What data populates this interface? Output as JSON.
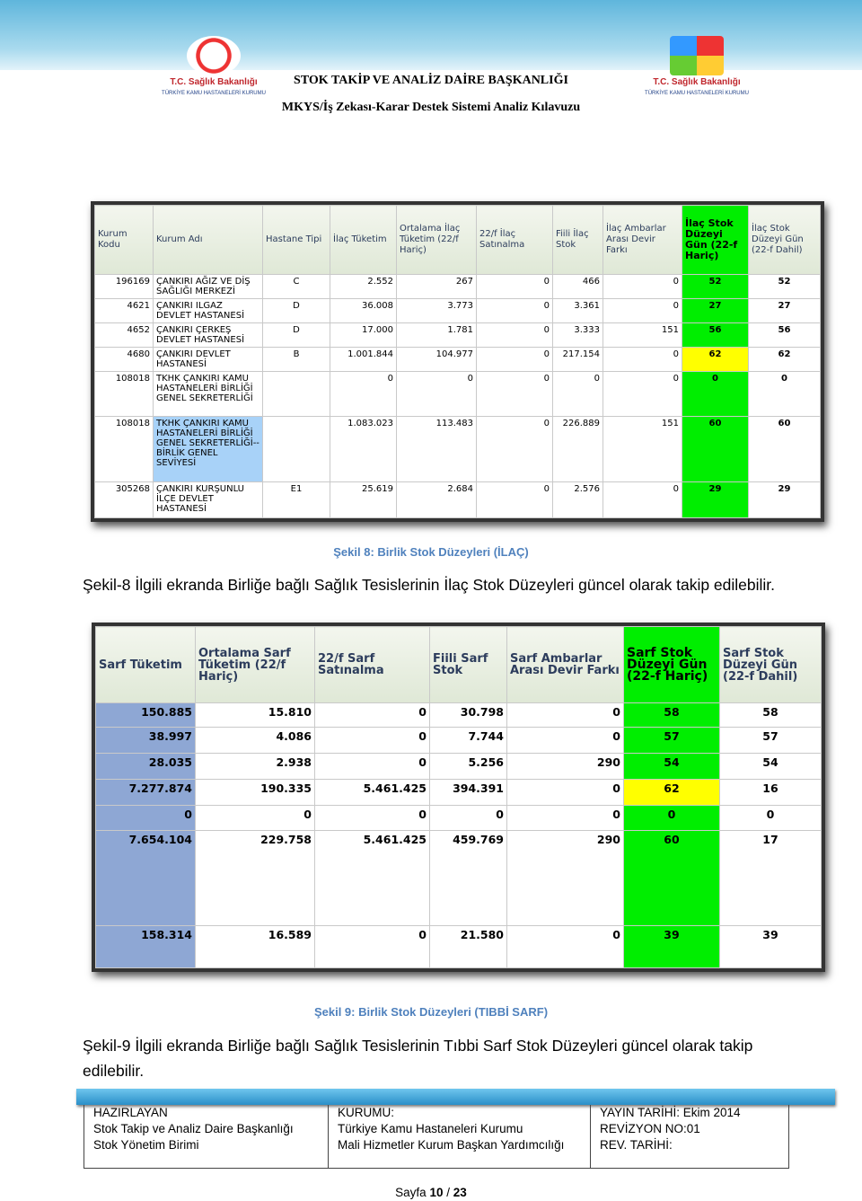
{
  "header": {
    "left_logo": {
      "org": "T.C. Sağlık Bakanlığı",
      "sub": "TÜRKİYE KAMU HASTANELERİ KURUMU"
    },
    "right_logo": {
      "org": "T.C. Sağlık Bakanlığı",
      "sub": "TÜRKİYE KAMU HASTANELERİ KURUMU"
    },
    "title": "STOK TAKİP VE ANALİZ DAİRE BAŞKANLIĞI",
    "subtitle": "MKYS/İş Zekası-Karar Destek Sistemi Analiz Kılavuzu"
  },
  "table1": {
    "headers": [
      "Kurum Kodu",
      "Kurum Adı",
      "Hastane Tipi",
      "İlaç Tüketim",
      "Ortalama İlaç Tüketim (22/f Hariç)",
      "22/f İlaç Satınalma",
      "Fiili İlaç Stok",
      "İlaç Ambarlar Arası Devir Farkı",
      "İlaç Stok Düzeyi Gün (22-f Hariç)",
      "İlaç Stok Düzeyi Gün (22-f Dahil)"
    ],
    "rows": [
      [
        "196169",
        "ÇANKIRI AĞIZ VE DİŞ SAĞLIĞI MERKEZİ",
        "C",
        "2.552",
        "267",
        "0",
        "466",
        "0",
        "52",
        "52"
      ],
      [
        "4621",
        "ÇANKIRI ILGAZ DEVLET HASTANESİ",
        "D",
        "36.008",
        "3.773",
        "0",
        "3.361",
        "0",
        "27",
        "27"
      ],
      [
        "4652",
        "ÇANKIRI ÇERKEŞ DEVLET HASTANESİ",
        "D",
        "17.000",
        "1.781",
        "0",
        "3.333",
        "151",
        "56",
        "56"
      ],
      [
        "4680",
        "ÇANKIRI DEVLET HASTANESİ",
        "B",
        "1.001.844",
        "104.977",
        "0",
        "217.154",
        "0",
        "62",
        "62"
      ],
      [
        "108018",
        "TKHK ÇANKIRI KAMU HASTANELERİ BİRLİĞİ GENEL SEKRETERLİĞİ",
        null,
        "0",
        "0",
        "0",
        "0",
        "0",
        "0",
        "0"
      ],
      [
        "108018",
        "TKHK ÇANKIRI KAMU HASTANELERİ BİRLİĞİ GENEL SEKRETERLİĞİ--BİRLİK GENEL SEVİYESİ",
        null,
        "1.083.023",
        "113.483",
        "0",
        "226.889",
        "151",
        "60",
        "60"
      ],
      [
        "305268",
        "ÇANKIRI KURŞUNLU İLÇE DEVLET HASTANESİ",
        "E1",
        "25.619",
        "2.684",
        "0",
        "2.576",
        "0",
        "29",
        "29"
      ]
    ],
    "level_colors": [
      "#00ee00",
      "#00ee00",
      "#00ee00",
      "#ffff00",
      "#00ee00",
      "#00ee00",
      "#00ee00"
    ]
  },
  "caption1": "Şekil 8: Birlik Stok Düzeyleri (İLAÇ)",
  "paragraph1": "Şekil-8 İlgili ekranda Birliğe bağlı Sağlık Tesislerinin İlaç Stok Düzeyleri güncel olarak takip edilebilir.",
  "table2": {
    "headers": [
      "Sarf Tüketim",
      "Ortalama Sarf Tüketim (22/f Hariç)",
      "22/f Sarf Satınalma",
      "Fiili Sarf Stok",
      "Sarf Ambarlar Arası Devir Farkı",
      "Sarf Stok Düzeyi Gün (22-f Hariç)",
      "Sarf Stok Düzeyi Gün (22-f Dahil)"
    ],
    "rows": [
      [
        "150.885",
        "15.810",
        "0",
        "30.798",
        "0",
        "58",
        "58"
      ],
      [
        "38.997",
        "4.086",
        "0",
        "7.744",
        "0",
        "57",
        "57"
      ],
      [
        "28.035",
        "2.938",
        "0",
        "5.256",
        "290",
        "54",
        "54"
      ],
      [
        "7.277.874",
        "190.335",
        "5.461.425",
        "394.391",
        "0",
        "62",
        "16"
      ],
      [
        "0",
        "0",
        "0",
        "0",
        "0",
        "0",
        "0"
      ],
      [
        "7.654.104",
        "229.758",
        "5.461.425",
        "459.769",
        "290",
        "60",
        "17"
      ],
      [
        "158.314",
        "16.589",
        "0",
        "21.580",
        "0",
        "39",
        "39"
      ]
    ],
    "level_colors": [
      "#00ee00",
      "#00ee00",
      "#00ee00",
      "#ffff00",
      "#00ee00",
      "#00ee00",
      "#00ee00"
    ]
  },
  "caption2": "Şekil 9: Birlik Stok Düzeyleri (TIBBİ SARF)",
  "paragraph2": "Şekil-9 İlgili ekranda Birliğe bağlı Sağlık Tesislerinin Tıbbi Sarf Stok Düzeyleri güncel olarak takip edilebilir.",
  "footer": {
    "columns": [
      [
        "HAZIRLAYAN",
        "Stok Takip ve Analiz Daire Başkanlığı",
        "Stok Yönetim Birimi"
      ],
      [
        "KURUMU:",
        "Türkiye Kamu Hastaneleri Kurumu",
        "Mali Hizmetler Kurum Başkan Yardımcılığı"
      ],
      [
        "YAYIN TARİHİ: Ekim 2014",
        "REVİZYON NO:01",
        "REV. TARİHİ:"
      ]
    ],
    "page": {
      "label": "Sayfa",
      "current": "10",
      "separator": "/",
      "total": "23"
    }
  }
}
